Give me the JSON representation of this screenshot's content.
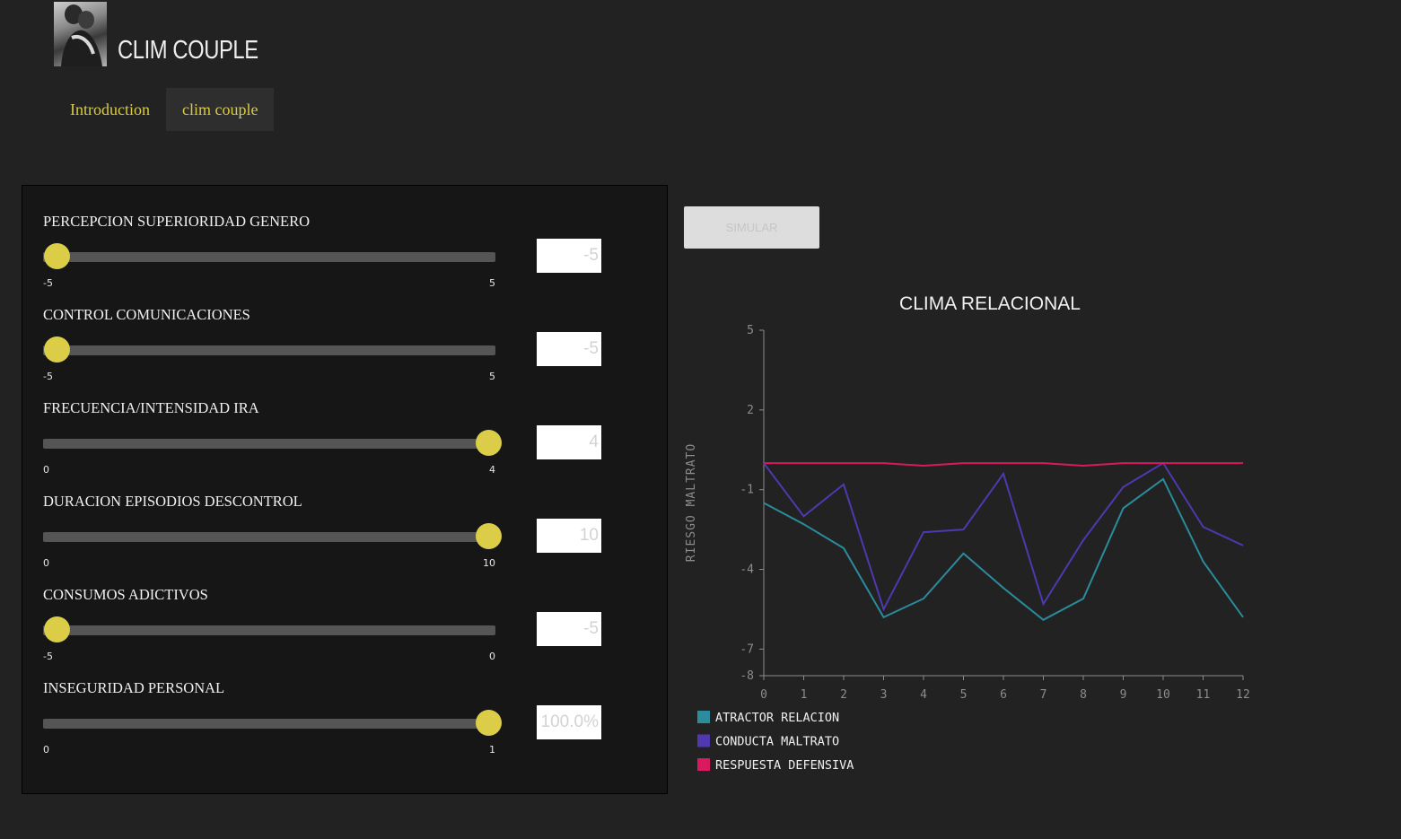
{
  "app": {
    "title": "CLIM COUPLE"
  },
  "tabs": [
    {
      "label": "Introduction",
      "active": false
    },
    {
      "label": "clim couple",
      "active": true
    }
  ],
  "controls": [
    {
      "label": "PERCEPCION SUPERIORIDAD GENERO",
      "min": -5,
      "max": 5,
      "min_label": "-5",
      "max_label": "5",
      "value": -5,
      "display": "-5"
    },
    {
      "label": "CONTROL COMUNICACIONES",
      "min": -5,
      "max": 5,
      "min_label": "-5",
      "max_label": "5",
      "value": -5,
      "display": "-5"
    },
    {
      "label": "FRECUENCIA/INTENSIDAD IRA",
      "min": 0,
      "max": 4,
      "min_label": "0",
      "max_label": "4",
      "value": 4,
      "display": "4"
    },
    {
      "label": "DURACION EPISODIOS DESCONTROL",
      "min": 0,
      "max": 10,
      "min_label": "0",
      "max_label": "10",
      "value": 10,
      "display": "10"
    },
    {
      "label": "CONSUMOS ADICTIVOS",
      "min": -5,
      "max": 0,
      "min_label": "-5",
      "max_label": "0",
      "value": -5,
      "display": "-5"
    },
    {
      "label": "INSEGURIDAD PERSONAL",
      "min": 0,
      "max": 1,
      "min_label": "0",
      "max_label": "1",
      "value": 1,
      "display": "100.0%"
    }
  ],
  "simulate_button": {
    "label": "SIMULAR"
  },
  "colors": {
    "accent": "#dccd48",
    "series_1": "#2a8c9c",
    "series_2": "#4f38b0",
    "series_3": "#d8195f"
  },
  "chart_data": {
    "type": "line",
    "title": "CLIMA RELACIONAL",
    "xlabel": "",
    "ylabel": "RIESGO MALTRATO",
    "x": [
      0,
      1,
      2,
      3,
      4,
      5,
      6,
      7,
      8,
      9,
      10,
      11,
      12
    ],
    "xlim": [
      0,
      12
    ],
    "ylim": [
      -8,
      5
    ],
    "yticks": [
      5,
      2,
      -1,
      -4,
      -7,
      -8
    ],
    "grid": false,
    "legend_position": "bottom-left",
    "series": [
      {
        "name": "ATRACTOR RELACION",
        "color": "#2a8c9c",
        "values": [
          -1.5,
          -2.3,
          -3.2,
          -5.8,
          -5.1,
          -3.4,
          -4.7,
          -5.9,
          -5.1,
          -1.7,
          -0.6,
          -3.7,
          -5.8
        ]
      },
      {
        "name": "CONDUCTA MALTRATO",
        "color": "#4f38b0",
        "values": [
          0.0,
          -2.0,
          -0.8,
          -5.5,
          -2.6,
          -2.5,
          -0.4,
          -5.3,
          -2.9,
          -0.9,
          0.0,
          -2.4,
          -3.1
        ]
      },
      {
        "name": "RESPUESTA DEFENSIVA",
        "color": "#d8195f",
        "values": [
          0.0,
          0.0,
          0.0,
          0.0,
          -0.1,
          0.0,
          0.0,
          0.0,
          -0.1,
          0.0,
          0.0,
          0.0,
          0.0
        ]
      }
    ]
  }
}
